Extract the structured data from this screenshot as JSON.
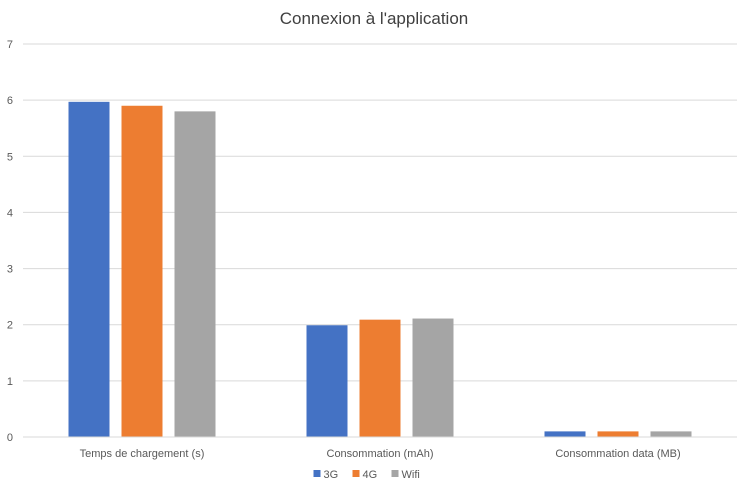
{
  "chart_data": {
    "type": "bar",
    "title": "Connexion à l'application",
    "xlabel": "",
    "ylabel": "",
    "categories": [
      "Temps de chargement (s)",
      "Consommation (mAh)",
      "Consommation data (MB)"
    ],
    "series": [
      {
        "name": "3G",
        "color": "#4472C4",
        "values": [
          5.97,
          1.99,
          0.1
        ]
      },
      {
        "name": "4G",
        "color": "#ED7D31",
        "values": [
          5.9,
          2.09,
          0.1
        ]
      },
      {
        "name": "Wifi",
        "color": "#A5A5A5",
        "values": [
          5.8,
          2.11,
          0.1
        ]
      }
    ],
    "ylim": [
      0,
      7
    ],
    "yticks": [
      "0",
      "1",
      "2",
      "3",
      "4",
      "5",
      "6",
      "7"
    ],
    "grid": true,
    "legend_position": "bottom"
  }
}
